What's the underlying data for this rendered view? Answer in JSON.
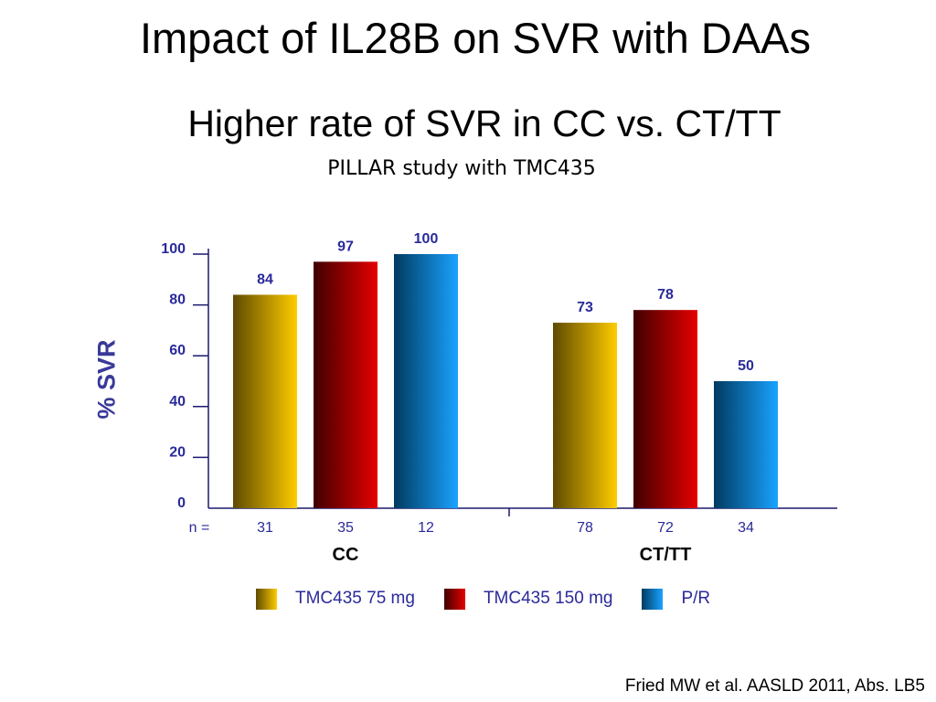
{
  "slide": {
    "title": "Impact of IL28B on SVR with DAAs",
    "subtitle": "Higher rate of SVR in CC vs. CT/TT",
    "study": "PILLAR study with TMC435",
    "citation": "Fried MW et al. AASLD 2011, Abs. LB5"
  },
  "chart_data": {
    "type": "bar",
    "ylabel": "% SVR",
    "ylim": [
      0,
      100
    ],
    "yticks": [
      0,
      20,
      40,
      60,
      80,
      100
    ],
    "n_label": "n =",
    "groups": [
      {
        "label": "CC",
        "bars": [
          {
            "series": "TMC435 75 mg",
            "value": 84,
            "n": "31"
          },
          {
            "series": "TMC435 150 mg",
            "value": 97,
            "n": "35"
          },
          {
            "series": "P/R",
            "value": 100,
            "n": "12"
          }
        ]
      },
      {
        "label": "CT/TT",
        "bars": [
          {
            "series": "TMC435 75 mg",
            "value": 73,
            "n": "78"
          },
          {
            "series": "TMC435 150 mg",
            "value": 78,
            "n": "72"
          },
          {
            "series": "P/R",
            "value": 50,
            "n": "34"
          }
        ]
      }
    ],
    "series": [
      {
        "name": "TMC435 75 mg",
        "color_dark": "#5e4a00",
        "color_light": "#ffcc00"
      },
      {
        "name": "TMC435 150 mg",
        "color_dark": "#3f0000",
        "color_light": "#e60000"
      },
      {
        "name": "P/R",
        "color_dark": "#003a60",
        "color_light": "#1aa3ff"
      }
    ],
    "legend_position": "bottom",
    "grid": false,
    "colors": {
      "tick_label": "#2a2a9a",
      "value_label": "#2a2a9a",
      "axis": "#1a1a6e"
    }
  }
}
